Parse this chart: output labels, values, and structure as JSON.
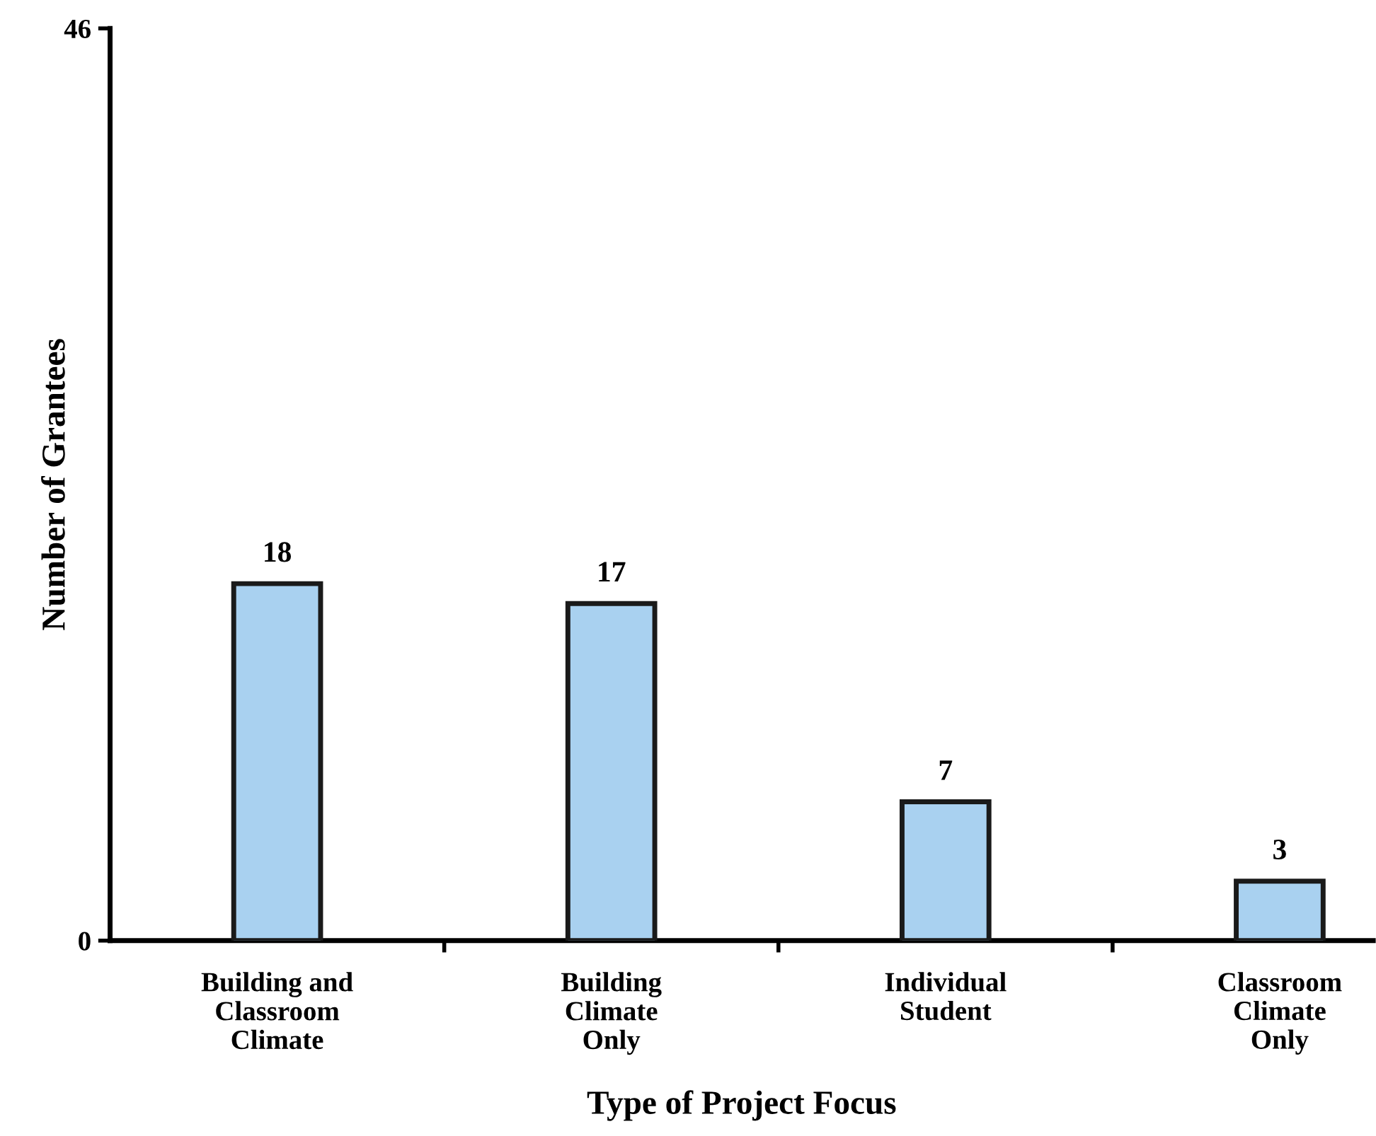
{
  "chart_data": {
    "type": "bar",
    "xlabel": "Type of Project Focus",
    "ylabel": "Number of Grantees",
    "categories": [
      "Building and\nClassroom\nClimate",
      "Building\nClimate\nOnly",
      "Individual\nStudent",
      "Classroom\nClimate\nOnly"
    ],
    "values": [
      18,
      17,
      7,
      3
    ],
    "color": "#a9d1f0",
    "data_labels": true,
    "ylim": [
      0,
      46
    ],
    "yticks": [
      0,
      46
    ],
    "grid": false,
    "legend": false
  }
}
